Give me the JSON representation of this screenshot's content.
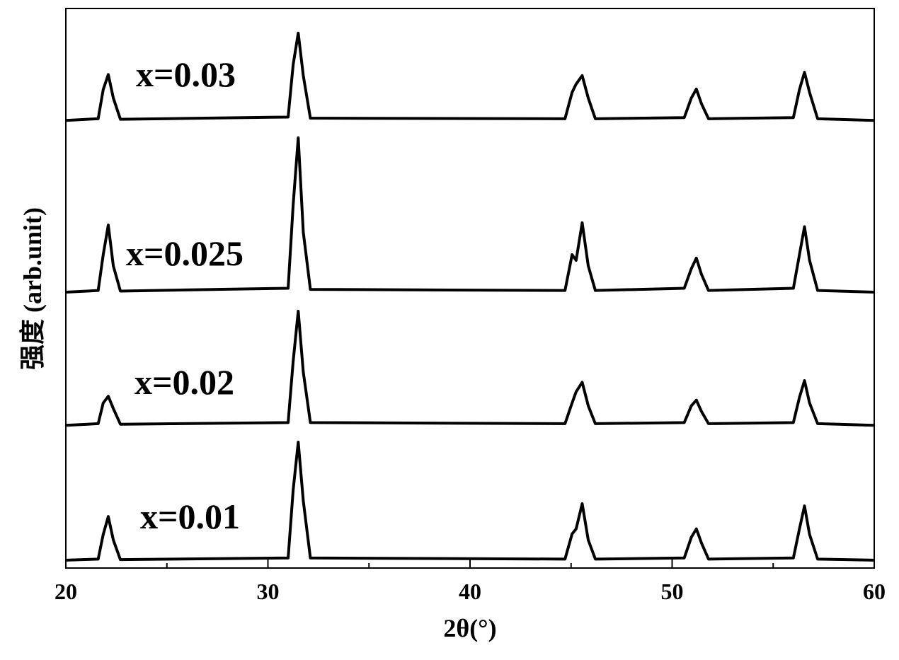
{
  "chart_data": {
    "type": "line",
    "xlabel": "2θ(°)",
    "ylabel": "强度 (arb.unit)",
    "x": [
      20,
      21.6,
      21.85,
      22.1,
      22.35,
      22.7,
      31.0,
      31.25,
      31.5,
      31.75,
      32.1,
      44.7,
      45.05,
      45.25,
      45.55,
      45.85,
      46.2,
      50.6,
      50.95,
      51.2,
      51.45,
      51.8,
      56.0,
      56.3,
      56.55,
      56.8,
      57.2,
      60
    ],
    "series": [
      {
        "name": "x=0.03",
        "color": "#000000",
        "values": [
          80,
          80.3,
          85.5,
          88.2,
          84,
          80.2,
          80.6,
          90,
          95.6,
          88,
          80.4,
          80.3,
          85,
          86.5,
          88,
          84,
          80.3,
          80.5,
          84,
          85.6,
          83,
          80.3,
          80.5,
          85.5,
          88.6,
          85,
          80.3,
          80
        ]
      },
      {
        "name": "x=0.025",
        "color": "#000000",
        "values": [
          49.3,
          49.6,
          56,
          61.3,
          54,
          49.5,
          50,
          65,
          76.9,
          60,
          49.8,
          49.6,
          56,
          55,
          61.7,
          54,
          49.6,
          50,
          53.5,
          55.4,
          52.5,
          49.6,
          50,
          56,
          61,
          55,
          49.6,
          49.3
        ]
      },
      {
        "name": "x=0.02",
        "color": "#000000",
        "values": [
          25.5,
          25.8,
          29.5,
          30.7,
          28.5,
          25.7,
          26,
          37,
          45.9,
          35,
          26,
          25.8,
          29.5,
          31.5,
          33.2,
          29,
          25.8,
          26,
          29,
          30,
          28,
          25.8,
          26,
          30.5,
          33.5,
          29.5,
          25.8,
          25.5
        ]
      },
      {
        "name": "x=0.01",
        "color": "#000000",
        "values": [
          1.4,
          1.6,
          6,
          9.2,
          5,
          1.5,
          1.8,
          14,
          22.5,
          12,
          1.8,
          1.6,
          6.1,
          7,
          11.5,
          5,
          1.6,
          1.8,
          5.5,
          7,
          4.5,
          1.6,
          1.8,
          7,
          11.1,
          6,
          1.6,
          1.4
        ]
      }
    ],
    "xlim": [
      20,
      60
    ],
    "xticks": [
      20,
      30,
      40,
      50,
      60
    ],
    "xminor_ticks": [
      25,
      35,
      45,
      55
    ],
    "ylim": [
      0,
      100
    ],
    "legend": "inline"
  }
}
